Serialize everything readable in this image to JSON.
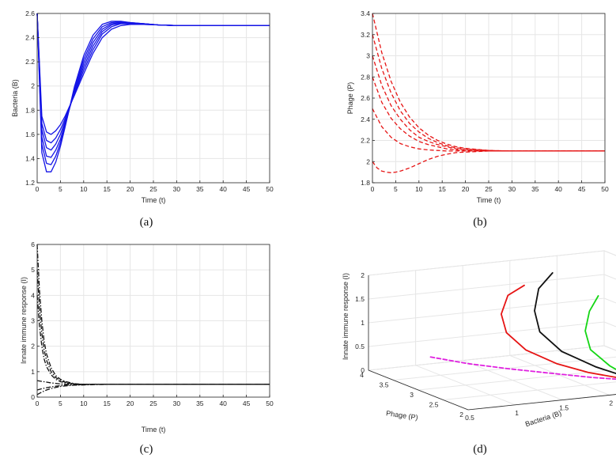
{
  "chart_data": [
    {
      "id": "a",
      "panel_label": "(a)",
      "type": "line",
      "title": "",
      "xlabel": "Time (t)",
      "ylabel": "Bacteria (B)",
      "xlim": [
        0,
        50
      ],
      "ylim": [
        1.2,
        2.6
      ],
      "xticks": [
        "0",
        "5",
        "10",
        "15",
        "20",
        "25",
        "30",
        "35",
        "40",
        "45",
        "50"
      ],
      "yticks": [
        "1.2",
        "1.4",
        "1.6",
        "1.8",
        "2",
        "2.2",
        "2.4",
        "2.6"
      ],
      "grid": true,
      "series_color": "#1414e6",
      "series_style": "solid",
      "series": [
        {
          "name": "curve 1",
          "x": [
            0,
            1,
            2,
            3,
            4,
            5,
            6,
            8,
            10,
            12,
            14,
            16,
            18,
            20,
            23,
            26,
            30,
            35,
            40,
            50
          ],
          "y": [
            2.6,
            1.75,
            1.62,
            1.6,
            1.63,
            1.68,
            1.75,
            1.92,
            2.1,
            2.27,
            2.4,
            2.47,
            2.5,
            2.51,
            2.51,
            2.505,
            2.5,
            2.5,
            2.5,
            2.5
          ]
        },
        {
          "name": "curve 2",
          "x": [
            0,
            1,
            2,
            3,
            4,
            5,
            6,
            8,
            10,
            12,
            14,
            16,
            18,
            20,
            23,
            26,
            30,
            35,
            40,
            50
          ],
          "y": [
            2.6,
            1.69,
            1.55,
            1.53,
            1.57,
            1.64,
            1.73,
            1.93,
            2.13,
            2.3,
            2.43,
            2.49,
            2.515,
            2.515,
            2.51,
            2.505,
            2.5,
            2.5,
            2.5,
            2.5
          ]
        },
        {
          "name": "curve 3",
          "x": [
            0,
            1,
            2,
            3,
            4,
            5,
            6,
            8,
            10,
            12,
            14,
            16,
            18,
            20,
            23,
            26,
            30,
            35,
            40,
            50
          ],
          "y": [
            2.6,
            1.64,
            1.49,
            1.47,
            1.52,
            1.6,
            1.71,
            1.94,
            2.16,
            2.33,
            2.45,
            2.505,
            2.52,
            2.52,
            2.515,
            2.505,
            2.5,
            2.5,
            2.5,
            2.5
          ]
        },
        {
          "name": "curve 4",
          "x": [
            0,
            1,
            2,
            3,
            4,
            5,
            6,
            8,
            10,
            12,
            14,
            16,
            18,
            20,
            23,
            26,
            30,
            35,
            40,
            50
          ],
          "y": [
            2.6,
            1.58,
            1.42,
            1.41,
            1.47,
            1.56,
            1.69,
            1.95,
            2.19,
            2.36,
            2.47,
            2.515,
            2.525,
            2.52,
            2.515,
            2.505,
            2.5,
            2.5,
            2.5,
            2.5
          ]
        },
        {
          "name": "curve 5",
          "x": [
            0,
            1,
            2,
            3,
            4,
            5,
            6,
            8,
            10,
            12,
            14,
            16,
            18,
            20,
            23,
            26,
            30,
            35,
            40,
            50
          ],
          "y": [
            2.6,
            1.52,
            1.36,
            1.35,
            1.42,
            1.53,
            1.67,
            1.97,
            2.22,
            2.39,
            2.49,
            2.525,
            2.53,
            2.525,
            2.515,
            2.505,
            2.5,
            2.5,
            2.5,
            2.5
          ]
        },
        {
          "name": "curve 6",
          "x": [
            0,
            1,
            2,
            3,
            4,
            5,
            6,
            8,
            10,
            12,
            14,
            16,
            18,
            20,
            23,
            26,
            30,
            35,
            40,
            50
          ],
          "y": [
            2.6,
            1.45,
            1.29,
            1.29,
            1.37,
            1.5,
            1.66,
            1.99,
            2.25,
            2.42,
            2.51,
            2.535,
            2.535,
            2.525,
            2.515,
            2.505,
            2.5,
            2.5,
            2.5,
            2.5
          ]
        }
      ]
    },
    {
      "id": "b",
      "panel_label": "(b)",
      "type": "line",
      "title": "",
      "xlabel": "Time (t)",
      "ylabel": "Phage (P)",
      "xlim": [
        0,
        50
      ],
      "ylim": [
        1.8,
        3.4
      ],
      "xticks": [
        "0",
        "5",
        "10",
        "15",
        "20",
        "25",
        "30",
        "35",
        "40",
        "45",
        "50"
      ],
      "yticks": [
        "1.8",
        "2",
        "2.2",
        "2.4",
        "2.6",
        "2.8",
        "3",
        "3.2",
        "3.4"
      ],
      "grid": true,
      "series_color": "#e61414",
      "series_style": "dashed",
      "series": [
        {
          "name": "curve 1",
          "x": [
            0,
            2,
            4,
            6,
            8,
            10,
            12,
            14,
            16,
            18,
            20,
            25,
            30,
            35,
            40,
            50
          ],
          "y": [
            3.4,
            3.03,
            2.76,
            2.56,
            2.42,
            2.32,
            2.25,
            2.2,
            2.165,
            2.14,
            2.125,
            2.105,
            2.1,
            2.1,
            2.1,
            2.1
          ]
        },
        {
          "name": "curve 2",
          "x": [
            0,
            2,
            4,
            6,
            8,
            10,
            12,
            14,
            16,
            18,
            20,
            25,
            30,
            35,
            40,
            50
          ],
          "y": [
            3.2,
            2.88,
            2.65,
            2.48,
            2.36,
            2.28,
            2.22,
            2.18,
            2.15,
            2.13,
            2.12,
            2.105,
            2.1,
            2.1,
            2.1,
            2.1
          ]
        },
        {
          "name": "curve 3",
          "x": [
            0,
            2,
            4,
            6,
            8,
            10,
            12,
            14,
            16,
            18,
            20,
            25,
            30,
            35,
            40,
            50
          ],
          "y": [
            3.0,
            2.72,
            2.53,
            2.4,
            2.3,
            2.23,
            2.19,
            2.16,
            2.14,
            2.12,
            2.11,
            2.1,
            2.1,
            2.1,
            2.1,
            2.1
          ]
        },
        {
          "name": "curve 4",
          "x": [
            0,
            2,
            4,
            6,
            8,
            10,
            12,
            14,
            16,
            18,
            20,
            25,
            30,
            35,
            40,
            50
          ],
          "y": [
            2.8,
            2.56,
            2.41,
            2.31,
            2.24,
            2.19,
            2.16,
            2.14,
            2.12,
            2.11,
            2.105,
            2.1,
            2.1,
            2.1,
            2.1,
            2.1
          ]
        },
        {
          "name": "curve 5",
          "x": [
            0,
            2,
            4,
            6,
            8,
            10,
            12,
            14,
            16,
            18,
            20,
            25,
            30,
            35,
            40,
            50
          ],
          "y": [
            2.5,
            2.33,
            2.23,
            2.17,
            2.14,
            2.12,
            2.11,
            2.105,
            2.1,
            2.1,
            2.1,
            2.1,
            2.1,
            2.1,
            2.1,
            2.1
          ]
        },
        {
          "name": "curve 6",
          "x": [
            0,
            1,
            2,
            3,
            4,
            5,
            6,
            8,
            10,
            12,
            14,
            16,
            18,
            20,
            25,
            30,
            40,
            50
          ],
          "y": [
            2.0,
            1.94,
            1.91,
            1.9,
            1.895,
            1.9,
            1.91,
            1.94,
            1.98,
            2.02,
            2.05,
            2.07,
            2.085,
            2.09,
            2.1,
            2.1,
            2.1,
            2.1
          ]
        }
      ]
    },
    {
      "id": "c",
      "panel_label": "(c)",
      "type": "line",
      "title": "",
      "xlabel": "Time (t)",
      "ylabel": "Innate immune response (I)",
      "xlim": [
        0,
        50
      ],
      "ylim": [
        0,
        6
      ],
      "xticks": [
        "0",
        "5",
        "10",
        "15",
        "20",
        "25",
        "30",
        "35",
        "40",
        "45",
        "50"
      ],
      "yticks": [
        "0",
        "1",
        "2",
        "3",
        "4",
        "5",
        "6"
      ],
      "grid": true,
      "series_color": "#111111",
      "series_style": "dashdot",
      "series": [
        {
          "name": "curve 1",
          "x": [
            0,
            0.5,
            1,
            1.5,
            2,
            3,
            4,
            5,
            6,
            8,
            10,
            15,
            20,
            50
          ],
          "y": [
            6.0,
            4.2,
            3.0,
            2.2,
            1.7,
            1.15,
            0.85,
            0.7,
            0.62,
            0.53,
            0.5,
            0.5,
            0.5,
            0.5
          ]
        },
        {
          "name": "curve 2",
          "x": [
            0,
            0.5,
            1,
            1.5,
            2,
            3,
            4,
            5,
            6,
            8,
            10,
            15,
            20,
            50
          ],
          "y": [
            5.0,
            3.5,
            2.5,
            1.85,
            1.45,
            1.0,
            0.77,
            0.65,
            0.59,
            0.52,
            0.5,
            0.5,
            0.5,
            0.5
          ]
        },
        {
          "name": "curve 3",
          "x": [
            0,
            0.5,
            1,
            1.5,
            2,
            3,
            4,
            5,
            6,
            8,
            10,
            15,
            20,
            50
          ],
          "y": [
            4.0,
            2.8,
            2.0,
            1.5,
            1.2,
            0.88,
            0.7,
            0.61,
            0.56,
            0.51,
            0.5,
            0.5,
            0.5,
            0.5
          ]
        },
        {
          "name": "curve 4",
          "x": [
            0,
            1,
            2,
            3,
            4,
            5,
            6,
            8,
            10,
            15,
            20,
            50
          ],
          "y": [
            0.65,
            0.62,
            0.59,
            0.56,
            0.54,
            0.52,
            0.51,
            0.5,
            0.5,
            0.5,
            0.5,
            0.5
          ]
        },
        {
          "name": "curve 5",
          "x": [
            0,
            1,
            2,
            3,
            4,
            5,
            6,
            8,
            10,
            12,
            15,
            20,
            50
          ],
          "y": [
            0.28,
            0.33,
            0.37,
            0.4,
            0.43,
            0.45,
            0.47,
            0.48,
            0.49,
            0.5,
            0.5,
            0.5,
            0.5
          ]
        },
        {
          "name": "curve 6",
          "x": [
            0,
            1,
            2,
            3,
            4,
            5,
            6,
            8,
            10,
            12,
            15,
            20,
            50
          ],
          "y": [
            0.1,
            0.2,
            0.28,
            0.34,
            0.38,
            0.42,
            0.44,
            0.47,
            0.48,
            0.49,
            0.5,
            0.5,
            0.5
          ]
        }
      ]
    },
    {
      "id": "d",
      "panel_label": "(d)",
      "type": "line3d",
      "title": "",
      "xlabel": "Bacteria (B)",
      "ylabel": "Phage (P)",
      "zlabel": "Innate immune response (I)",
      "xlim": [
        0.5,
        3
      ],
      "ylim": [
        2,
        4
      ],
      "zlim": [
        0,
        2
      ],
      "xticks": [
        "0.5",
        "1",
        "1.5",
        "2",
        "2.5",
        "3"
      ],
      "yticks": [
        "2",
        "2.5",
        "3",
        "3.5",
        "4"
      ],
      "zticks": [
        "0",
        "0.5",
        "1",
        "1.5",
        "2"
      ],
      "grid": true,
      "series": [
        {
          "name": "magenta",
          "color": "#e020e0",
          "style": "dashed",
          "b": [
            1.0,
            1.3,
            1.6,
            1.9,
            2.2,
            2.5
          ],
          "p": [
            3.7,
            3.5,
            3.3,
            3.05,
            2.75,
            2.5
          ],
          "i": [
            0.3,
            0.18,
            0.1,
            0.05,
            0.02,
            0.0
          ]
        },
        {
          "name": "red",
          "color": "#e61414",
          "style": "solid",
          "b": [
            2.1,
            1.9,
            1.75,
            1.7,
            1.8,
            2.0,
            2.2,
            2.45,
            2.55
          ],
          "p": [
            3.9,
            3.85,
            3.7,
            3.5,
            3.3,
            3.05,
            2.8,
            2.55,
            2.5
          ],
          "i": [
            1.5,
            1.35,
            1.05,
            0.75,
            0.45,
            0.22,
            0.1,
            0.02,
            0.0
          ]
        },
        {
          "name": "black",
          "color": "#111111",
          "style": "solid",
          "b": [
            2.4,
            2.2,
            2.05,
            2.0,
            2.1,
            2.3,
            2.5,
            2.55
          ],
          "p": [
            3.9,
            3.8,
            3.6,
            3.4,
            3.15,
            2.85,
            2.55,
            2.5
          ],
          "i": [
            1.7,
            1.45,
            1.1,
            0.75,
            0.42,
            0.18,
            0.03,
            0.0
          ]
        },
        {
          "name": "green",
          "color": "#14d614",
          "style": "solid",
          "b": [
            2.7,
            2.5,
            2.35,
            2.3,
            2.4,
            2.5,
            2.55
          ],
          "p": [
            3.55,
            3.35,
            3.15,
            2.95,
            2.75,
            2.55,
            2.5
          ],
          "i": [
            1.3,
            1.1,
            0.8,
            0.5,
            0.22,
            0.05,
            0.0
          ]
        },
        {
          "name": "blue",
          "color": "#1414e6",
          "style": "solid",
          "b": [
            2.9,
            2.75,
            2.6,
            2.5,
            2.5,
            2.55
          ],
          "p": [
            3.1,
            2.95,
            2.8,
            2.65,
            2.55,
            2.5
          ],
          "i": [
            0.95,
            0.8,
            0.55,
            0.3,
            0.1,
            0.0
          ]
        }
      ]
    }
  ]
}
